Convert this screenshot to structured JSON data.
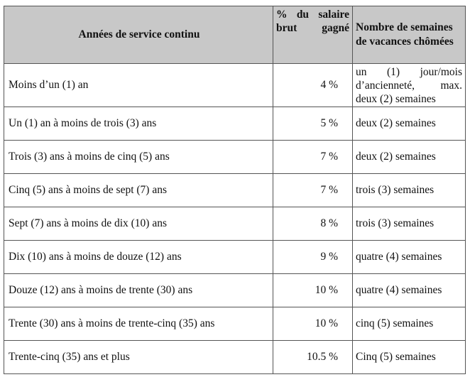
{
  "headers": [
    "Années de service continu",
    "% du salaire brut gagné",
    "Nombre de semaines de vacances chômées"
  ],
  "rows": [
    {
      "years": "Moins d’un (1) an",
      "percent": "4 %",
      "weeks": "un (1) jour/mois d’ancienneté, max. deux (2) semaines"
    },
    {
      "years": "Un (1) an à moins de trois (3) ans",
      "percent": "5 %",
      "weeks": "deux (2) semaines"
    },
    {
      "years": "Trois (3) ans à moins de cinq (5) ans",
      "percent": "7 %",
      "weeks": "deux (2) semaines"
    },
    {
      "years": "Cinq (5) ans à moins de sept (7) ans",
      "percent": "7 %",
      "weeks": "trois (3) semaines"
    },
    {
      "years": "Sept (7) ans à moins de dix (10) ans",
      "percent": "8 %",
      "weeks": "trois (3) semaines"
    },
    {
      "years": "Dix (10) ans à moins de douze (12) ans",
      "percent": "9 %",
      "weeks": "quatre (4) semaines"
    },
    {
      "years": "Douze (12) ans à moins de trente (30) ans",
      "percent": "10 %",
      "weeks": "quatre (4) semaines"
    },
    {
      "years": "Trente (30) ans à moins de trente-cinq (35) ans",
      "percent": "10 %",
      "weeks": "cinq (5) semaines"
    },
    {
      "years": "Trente-cinq (35) ans et plus",
      "percent": "10.5 %",
      "weeks": "Cinq (5) semaines"
    }
  ]
}
